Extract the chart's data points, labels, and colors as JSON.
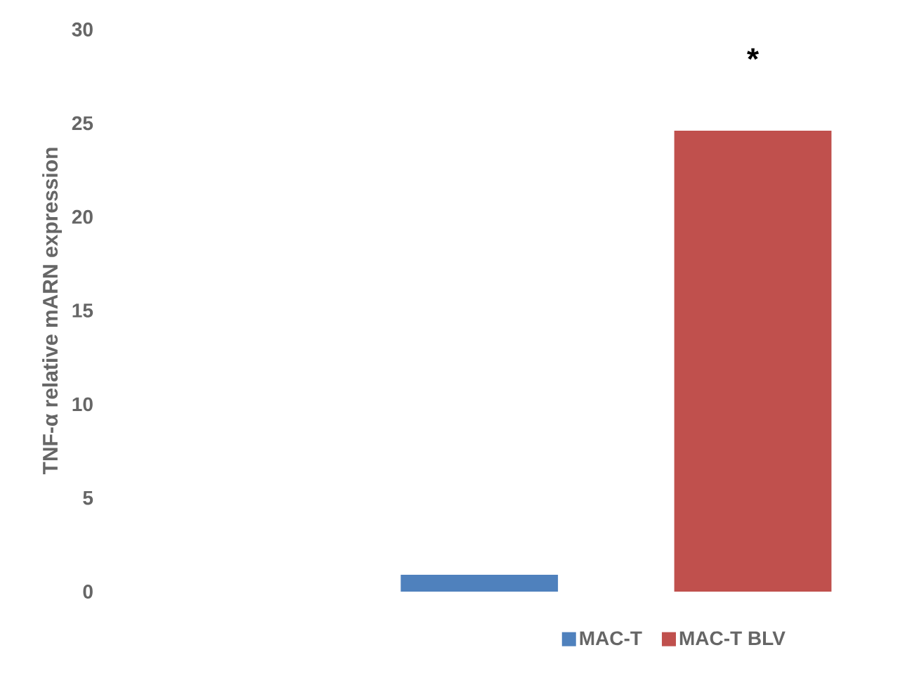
{
  "chart_data": {
    "type": "bar",
    "ylabel": "TNF-α relative mARN expression",
    "categories": [
      null
    ],
    "series": [
      {
        "name": "MAC-T",
        "color": "#4f81bd",
        "values": [
          0.9
        ]
      },
      {
        "name": "MAC-T BLV",
        "color": "#c0504d",
        "values": [
          24.6
        ]
      }
    ],
    "ylim": [
      0,
      30
    ],
    "yticks": [
      0,
      5,
      10,
      15,
      20,
      25,
      30
    ],
    "legend": "bottom",
    "annotations": [
      "*"
    ]
  }
}
